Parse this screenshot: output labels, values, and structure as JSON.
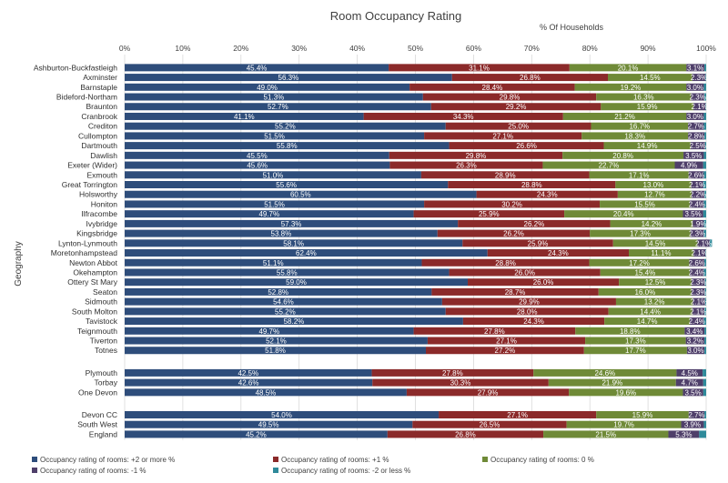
{
  "chart_data": {
    "type": "bar",
    "orientation": "horizontal",
    "stacked": true,
    "title": "Room Occupancy Rating",
    "subtitle": "% Of Households",
    "ylabel": "Geography",
    "xlim": [
      0,
      100
    ],
    "x_ticks": [
      "0%",
      "10%",
      "20%",
      "30%",
      "40%",
      "50%",
      "60%",
      "70%",
      "80%",
      "90%",
      "100%"
    ],
    "grid": true,
    "legend_position": "bottom",
    "groups": [
      {
        "categories": [
          "Ashburton-Buckfastleigh",
          "Axminster",
          "Barnstaple",
          "Bideford-Northam",
          "Braunton",
          "Cranbrook",
          "Crediton",
          "Cullompton",
          "Dartmouth",
          "Dawlish",
          "Exeter (Wider)",
          "Exmouth",
          "Great Torrington",
          "Holsworthy",
          "Honiton",
          "Ilfracombe",
          "Ivybridge",
          "Kingsbridge",
          "Lynton-Lynmouth",
          "Moretonhampstead",
          "Newton Abbot",
          "Okehampton",
          "Ottery St Mary",
          "Seaton",
          "Sidmouth",
          "South Molton",
          "Tavistock",
          "Teignmouth",
          "Tiverton",
          "Totnes"
        ],
        "values": [
          [
            45.4,
            31.1,
            20.1,
            3.1,
            0.3
          ],
          [
            56.3,
            26.8,
            14.5,
            2.3,
            0.1
          ],
          [
            49.0,
            28.4,
            19.2,
            3.0,
            0.4
          ],
          [
            51.3,
            29.8,
            16.3,
            2.3,
            0.3
          ],
          [
            52.7,
            29.2,
            15.9,
            2.1,
            0.1
          ],
          [
            41.1,
            34.3,
            21.2,
            3.0,
            0.4
          ],
          [
            55.2,
            25.0,
            16.7,
            2.7,
            0.4
          ],
          [
            51.5,
            27.1,
            18.3,
            2.8,
            0.3
          ],
          [
            55.8,
            26.6,
            14.9,
            2.5,
            0.2
          ],
          [
            45.5,
            29.8,
            20.8,
            3.5,
            0.4
          ],
          [
            45.6,
            26.3,
            22.7,
            4.9,
            0.5
          ],
          [
            51.0,
            28.9,
            17.1,
            2.6,
            0.4
          ],
          [
            55.6,
            28.8,
            13.0,
            2.1,
            0.5
          ],
          [
            60.5,
            24.3,
            12.7,
            2.2,
            0.3
          ],
          [
            51.5,
            30.2,
            15.5,
            2.4,
            0.4
          ],
          [
            49.7,
            25.9,
            20.4,
            3.5,
            0.5
          ],
          [
            57.3,
            26.2,
            14.2,
            1.9,
            0.4
          ],
          [
            53.8,
            26.2,
            17.3,
            2.3,
            0.4
          ],
          [
            58.1,
            25.9,
            14.5,
            2.1,
            0.4
          ],
          [
            62.4,
            24.3,
            11.1,
            2.1,
            0.1
          ],
          [
            51.1,
            28.8,
            17.2,
            2.6,
            0.3
          ],
          [
            55.8,
            26.0,
            15.4,
            2.4,
            0.4
          ],
          [
            59.0,
            26.0,
            12.5,
            2.3,
            0.2
          ],
          [
            52.8,
            28.7,
            16.0,
            2.3,
            0.2
          ],
          [
            54.6,
            29.9,
            13.2,
            2.1,
            0.2
          ],
          [
            55.2,
            28.0,
            14.4,
            2.1,
            0.3
          ],
          [
            58.2,
            24.3,
            14.7,
            2.4,
            0.4
          ],
          [
            49.7,
            27.8,
            18.8,
            3.4,
            0.3
          ],
          [
            52.1,
            27.1,
            17.3,
            3.2,
            0.3
          ],
          [
            51.8,
            27.2,
            17.7,
            3.0,
            0.3
          ]
        ]
      },
      {
        "categories": [
          "Plymouth",
          "Torbay",
          "One Devon"
        ],
        "values": [
          [
            42.5,
            27.8,
            24.6,
            4.5,
            0.6
          ],
          [
            42.6,
            30.3,
            21.9,
            4.7,
            0.5
          ],
          [
            48.5,
            27.9,
            19.6,
            3.5,
            0.5
          ]
        ]
      },
      {
        "categories": [
          "Devon CC",
          "South West",
          "England"
        ],
        "values": [
          [
            54.0,
            27.1,
            15.9,
            2.7,
            0.3
          ],
          [
            49.5,
            26.5,
            19.7,
            3.9,
            0.4
          ],
          [
            45.2,
            26.8,
            21.5,
            5.3,
            1.2
          ]
        ]
      }
    ],
    "value_labels": {
      "Ashburton-Buckfastleigh": [
        "45.4%",
        "31.1%",
        "20.1%",
        "3.1%"
      ],
      "Axminster": [
        "56.3%",
        "26.8%",
        "14.5%",
        "2.3%"
      ],
      "Barnstaple": [
        "49.0%",
        "28.4%",
        "19.2%",
        "3.0%"
      ],
      "Bideford-Northam": [
        "51.3%",
        "29.8%",
        "16.3%",
        "2.3%"
      ],
      "Braunton": [
        "52.7%",
        "29.2%",
        "15.9%",
        "2.1%"
      ],
      "Cranbrook": [
        "41.1%",
        "34.3%",
        "21.2%",
        "3.0%"
      ],
      "Crediton": [
        "55.2%",
        "25.0%",
        "16.7%",
        "2.7%"
      ],
      "Cullompton": [
        "51.5%",
        "27.1%",
        "18.3%",
        "2.8%"
      ],
      "Dartmouth": [
        "55.8%",
        "26.6%",
        "14.9%",
        "2.5%"
      ],
      "Dawlish": [
        "45.5%",
        "29.8%",
        "20.8%",
        "3.5%"
      ],
      "Exeter (Wider)": [
        "45.6%",
        "26.3%",
        "22.7%",
        "4.9%"
      ],
      "Exmouth": [
        "51.0%",
        "28.9%",
        "17.1%",
        "2.6%"
      ],
      "Great Torrington": [
        "55.6%",
        "28.8%",
        "13.0%",
        "2.1%"
      ],
      "Holsworthy": [
        "60.5%",
        "24.3%",
        "12.7%",
        "2.2%"
      ],
      "Honiton": [
        "51.5%",
        "30.2%",
        "15.5%",
        "2.4%"
      ],
      "Ilfracombe": [
        "49.7%",
        "25.9%",
        "20.4%",
        "3.5%"
      ],
      "Ivybridge": [
        "57.3%",
        "26.2%",
        "14.2%",
        "1.9%"
      ],
      "Kingsbridge": [
        "53.8%",
        "26.2%",
        "17.3%",
        "2.3%"
      ],
      "Lynton-Lynmouth": [
        "58.1%",
        "25.9%",
        "14.5%",
        "2.1%"
      ],
      "Moretonhampstead": [
        "62.4%",
        "24.3%",
        "11.1%",
        "2.1%"
      ],
      "Newton Abbot": [
        "51.1%",
        "28.8%",
        "17.2%",
        "2.6%"
      ],
      "Okehampton": [
        "55.8%",
        "26.0%",
        "15.4%",
        "2.4%"
      ],
      "Ottery St Mary": [
        "59.0%",
        "26.0%",
        "12.5%",
        "2.3%"
      ],
      "Seaton": [
        "52.8%",
        "28.7%",
        "16.0%",
        "2.3%"
      ],
      "Sidmouth": [
        "54.6%",
        "29.9%",
        "13.2%",
        "2.1%"
      ],
      "South Molton": [
        "55.2%",
        "28.0%",
        "14.4%",
        "2.1%"
      ],
      "Tavistock": [
        "58.2%",
        "24.3%",
        "14.7%",
        "2.4%"
      ],
      "Teignmouth": [
        "49.7%",
        "27.8%",
        "18.8%",
        "3.4%"
      ],
      "Tiverton": [
        "52.1%",
        "27.1%",
        "17.3%",
        "3.2%"
      ],
      "Totnes": [
        "51.8%",
        "27.2%",
        "17.7%",
        "3.0%"
      ],
      "Plymouth": [
        "42.5%",
        "27.8%",
        "24.6%",
        "4.5%"
      ],
      "Torbay": [
        "42.6%",
        "30.3%",
        "21.9%",
        "4.7%"
      ],
      "One Devon": [
        "48.5%",
        "27.9%",
        "19.6%",
        "3.5%"
      ],
      "Devon CC": [
        "54.0%",
        "27.1%",
        "15.9%",
        "2.7%"
      ],
      "South West": [
        "49.5%",
        "26.5%",
        "19.7%",
        "3.9%"
      ],
      "England": [
        "45.2%",
        "26.8%",
        "21.5%",
        "5.3%"
      ]
    },
    "series": [
      {
        "name": "Occupancy rating of rooms: +2 or more %",
        "color": "#2e4d7b"
      },
      {
        "name": "Occupancy rating of rooms: +1 %",
        "color": "#8b2a2a"
      },
      {
        "name": "Occupancy rating of rooms: 0 %",
        "color": "#6f8a37"
      },
      {
        "name": "Occupancy rating of rooms: -1 %",
        "color": "#4f3f6a"
      },
      {
        "name": "Occupancy rating of rooms: -2 or less %",
        "color": "#2e8a9a"
      }
    ]
  }
}
